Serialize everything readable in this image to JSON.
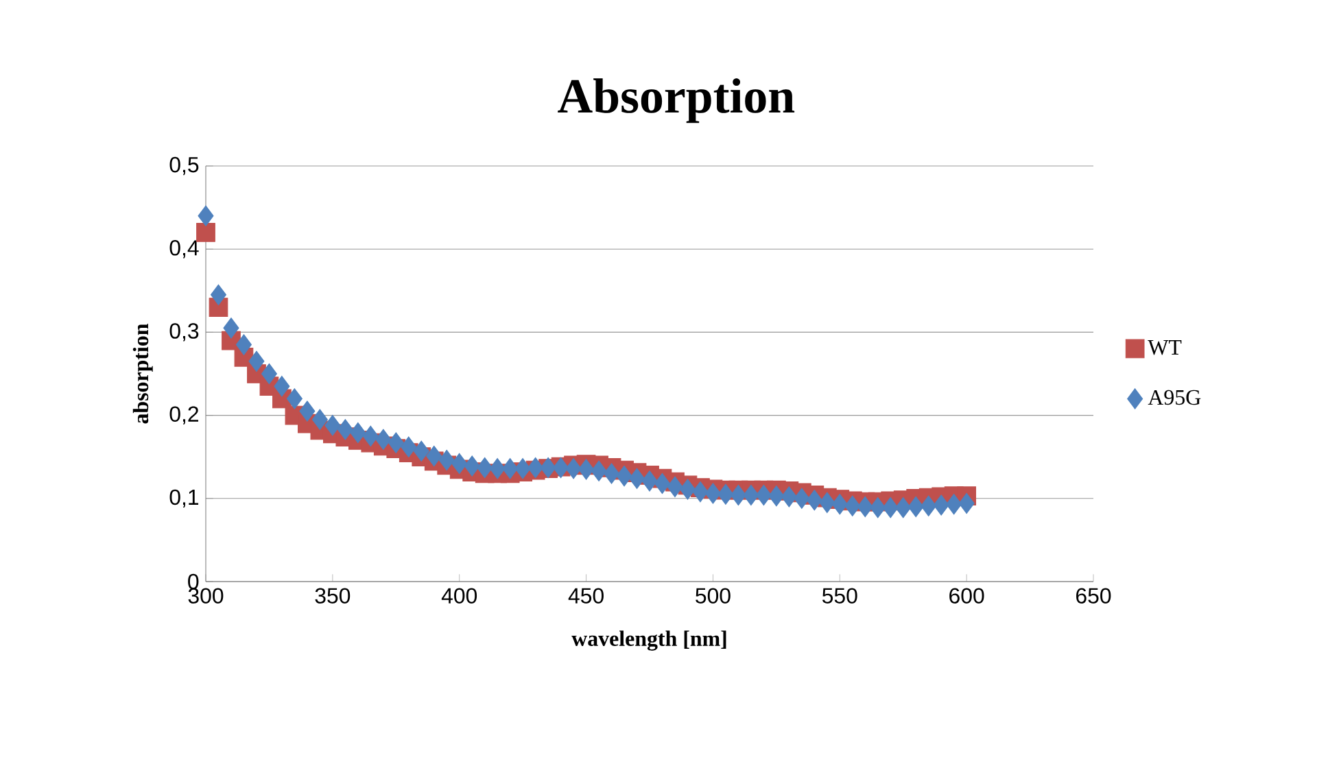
{
  "chart_data": {
    "type": "scatter",
    "title": "Absorption",
    "xlabel": "wavelength [nm]",
    "ylabel": "absorption",
    "x": [
      300,
      305,
      310,
      315,
      320,
      325,
      330,
      335,
      340,
      345,
      350,
      355,
      360,
      365,
      370,
      375,
      380,
      385,
      390,
      395,
      400,
      405,
      410,
      415,
      420,
      425,
      430,
      435,
      440,
      445,
      450,
      455,
      460,
      465,
      470,
      475,
      480,
      485,
      490,
      495,
      500,
      505,
      510,
      515,
      520,
      525,
      530,
      535,
      540,
      545,
      550,
      555,
      560,
      565,
      570,
      575,
      580,
      585,
      590,
      595,
      600
    ],
    "series": [
      {
        "name": "WT",
        "color": "#c0504d",
        "marker": "square",
        "values": [
          0.42,
          0.33,
          0.29,
          0.27,
          0.25,
          0.235,
          0.22,
          0.2,
          0.19,
          0.182,
          0.178,
          0.174,
          0.17,
          0.167,
          0.163,
          0.16,
          0.155,
          0.15,
          0.145,
          0.14,
          0.135,
          0.132,
          0.13,
          0.13,
          0.13,
          0.132,
          0.134,
          0.136,
          0.138,
          0.14,
          0.141,
          0.14,
          0.137,
          0.134,
          0.131,
          0.128,
          0.124,
          0.12,
          0.116,
          0.113,
          0.111,
          0.11,
          0.11,
          0.11,
          0.11,
          0.11,
          0.109,
          0.107,
          0.104,
          0.101,
          0.099,
          0.097,
          0.096,
          0.096,
          0.097,
          0.098,
          0.1,
          0.101,
          0.102,
          0.103,
          0.103
        ]
      },
      {
        "name": "A95G",
        "color": "#4f81bd",
        "marker": "diamond",
        "values": [
          0.44,
          0.345,
          0.305,
          0.285,
          0.265,
          0.25,
          0.235,
          0.22,
          0.205,
          0.195,
          0.188,
          0.183,
          0.179,
          0.175,
          0.171,
          0.167,
          0.162,
          0.157,
          0.151,
          0.146,
          0.142,
          0.139,
          0.137,
          0.136,
          0.136,
          0.136,
          0.137,
          0.137,
          0.137,
          0.136,
          0.135,
          0.133,
          0.13,
          0.127,
          0.124,
          0.121,
          0.118,
          0.114,
          0.111,
          0.108,
          0.106,
          0.105,
          0.104,
          0.104,
          0.104,
          0.103,
          0.102,
          0.1,
          0.098,
          0.095,
          0.093,
          0.091,
          0.09,
          0.089,
          0.089,
          0.089,
          0.09,
          0.091,
          0.092,
          0.093,
          0.094
        ]
      }
    ],
    "xlim": [
      300,
      650
    ],
    "xticks": [
      300,
      350,
      400,
      450,
      500,
      550,
      600,
      650
    ],
    "ylim": [
      0,
      0.5
    ],
    "yticks": [
      0,
      {
        "value": 0.1,
        "label": "0,1"
      },
      {
        "value": 0.2,
        "label": "0,2"
      },
      {
        "value": 0.3,
        "label": "0,3"
      },
      {
        "value": 0.4,
        "label": "0,4"
      },
      {
        "value": 0.5,
        "label": "0,5"
      }
    ],
    "grid": "y",
    "legend": "right"
  }
}
